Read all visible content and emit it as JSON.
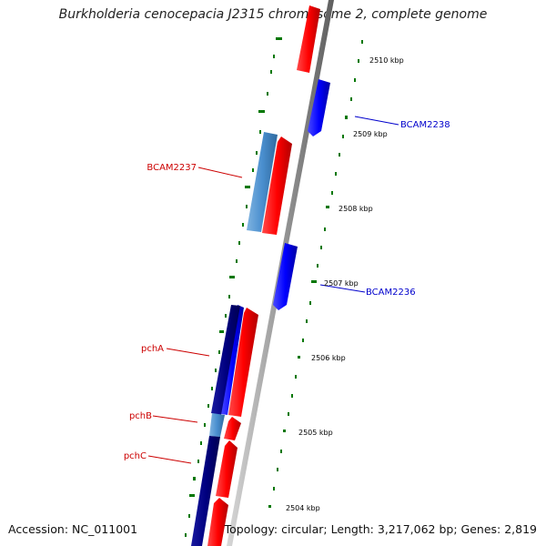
{
  "title": "Burkholderia cenocepacia J2315 chromosome 2, complete genome",
  "footer": {
    "accession": "Accession: NC_011001",
    "topology": "Topology: circular; Length: 3,217,062 bp; Genes: 2,819"
  },
  "ticks": [
    {
      "label": "2510 kbp",
      "kbp": 2510
    },
    {
      "label": "2509 kbp",
      "kbp": 2509
    },
    {
      "label": "2508 kbp",
      "kbp": 2508
    },
    {
      "label": "2507 kbp",
      "kbp": 2507
    },
    {
      "label": "2506 kbp",
      "kbp": 2506
    },
    {
      "label": "2505 kbp",
      "kbp": 2505
    },
    {
      "label": "2504 kbp",
      "kbp": 2504
    }
  ],
  "gene_labels": [
    {
      "name": "BCAM2238",
      "color": "#0000cc"
    },
    {
      "name": "BCAM2237",
      "color": "#cc0000"
    },
    {
      "name": "BCAM2236",
      "color": "#0000cc"
    },
    {
      "name": "pchA",
      "color": "#cc0000"
    },
    {
      "name": "pchB",
      "color": "#cc0000"
    },
    {
      "name": "pchC",
      "color": "#cc0000"
    }
  ],
  "colors": {
    "forward_cds": "#ff0000",
    "reverse_cds": "#0000ff",
    "light_blue_feature": "#4a8fcf",
    "dark_blue_feature": "#000080",
    "backbone": "#8c8c8c",
    "gc_marks": "#007700"
  }
}
